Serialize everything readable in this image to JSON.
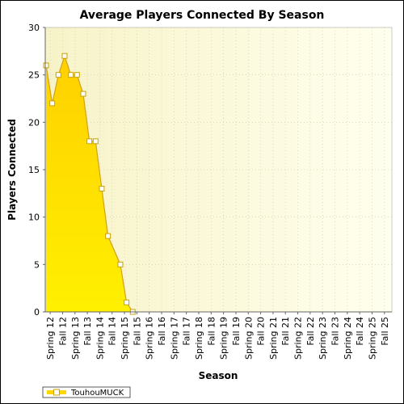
{
  "chart_data": {
    "type": "area",
    "title": "Average Players Connected By Season",
    "xlabel": "Season",
    "ylabel": "Players Connected",
    "ylim": [
      0,
      30
    ],
    "yticks": [
      0,
      5,
      10,
      15,
      20,
      25,
      30
    ],
    "grid": true,
    "legend_position": "bottom-left",
    "categories": [
      "Spring 12",
      "Fall 12",
      "Spring 13",
      "Fall 13",
      "Spring 14",
      "Fall 14",
      "Spring 15",
      "Fall 15",
      "Spring 16",
      "Fall 16",
      "Spring 17",
      "Fall 17",
      "Spring 18",
      "Fall 18",
      "Spring 19",
      "Fall 19",
      "Spring 20",
      "Fall 20",
      "Spring 21",
      "Fall 21",
      "Spring 22",
      "Fall 22",
      "Spring 23",
      "Fall 23",
      "Spring 24",
      "Fall 24",
      "Spring 25",
      "Fall 25"
    ],
    "series": [
      {
        "name": "TouhouMUCK",
        "color": "#FFE600",
        "line_color": "#D4A017",
        "points": [
          {
            "x": "Spring 12",
            "y": 26
          },
          {
            "x": "Spring 12",
            "y": 22
          },
          {
            "x": "Fall 12",
            "y": 25
          },
          {
            "x": "Fall 12",
            "y": 27
          },
          {
            "x": "Spring 13",
            "y": 25
          },
          {
            "x": "Spring 13",
            "y": 25
          },
          {
            "x": "Fall 13",
            "y": 23
          },
          {
            "x": "Fall 13",
            "y": 18
          },
          {
            "x": "Spring 14",
            "y": 18
          },
          {
            "x": "Spring 14",
            "y": 13
          },
          {
            "x": "Fall 14",
            "y": 8
          },
          {
            "x": "Spring 15",
            "y": 5
          },
          {
            "x": "Spring 15",
            "y": 1
          },
          {
            "x": "Fall 15",
            "y": 0
          }
        ]
      }
    ]
  }
}
